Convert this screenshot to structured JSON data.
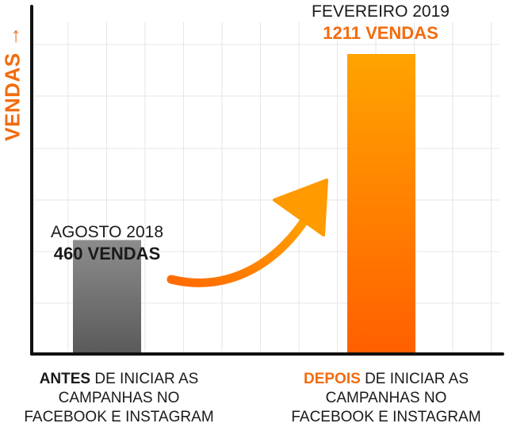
{
  "chart_data": {
    "type": "bar",
    "ylabel": "VENDAS →",
    "ylim": [
      0,
      1280
    ],
    "grid": true,
    "categories": [
      "ANTES",
      "DEPOIS"
    ],
    "values": [
      460,
      1211
    ],
    "bars": [
      {
        "period": "AGOSTO 2018",
        "value": 460,
        "value_label": "460 VENDAS",
        "color_top": "#8c8c8c",
        "color_bottom": "#5a5a5a",
        "caption_bold": "ANTES",
        "caption_rest_line1": " DE INICIAR AS",
        "caption_line2": "CAMPANHAS NO",
        "caption_line3": "FACEBOOK E INSTAGRAM"
      },
      {
        "period": "FEVEREIRO 2019",
        "value": 1211,
        "value_label": "1211 VENDAS",
        "color_top": "#ffa400",
        "color_bottom": "#ff5f00",
        "caption_bold": "DEPOIS",
        "caption_rest_line1": " DE INICIAR AS",
        "caption_line2": "CAMPANHAS NO",
        "caption_line3": "FACEBOOK E INSTAGRAM"
      }
    ],
    "arrow_color": "#ff8a00",
    "accent_color": "#f26b0f"
  }
}
